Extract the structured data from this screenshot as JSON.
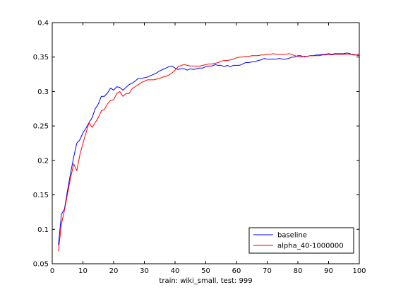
{
  "chart_data": {
    "type": "line",
    "title": "",
    "xlabel": "train: wiki_small, test: 999",
    "ylabel": "",
    "xlim": [
      0,
      100
    ],
    "ylim": [
      0.05,
      0.4
    ],
    "xticks": [
      "0",
      "10",
      "20",
      "30",
      "40",
      "50",
      "60",
      "70",
      "80",
      "90",
      "100"
    ],
    "yticks": [
      "0.05",
      "0.1",
      "0.15",
      "0.2",
      "0.25",
      "0.3",
      "0.35",
      "0.4"
    ],
    "grid": false,
    "legend_position": "bottom-right",
    "series": [
      {
        "name": "baseline",
        "color": "#0000ff",
        "x": [
          2,
          3,
          4,
          5,
          6,
          7,
          8,
          9,
          10,
          11,
          12,
          13,
          14,
          15,
          16,
          17,
          18,
          19,
          20,
          21,
          22,
          23,
          24,
          25,
          26,
          27,
          28,
          29,
          30,
          31,
          32,
          33,
          34,
          35,
          36,
          37,
          38,
          39,
          40,
          41,
          42,
          43,
          44,
          45,
          46,
          47,
          48,
          49,
          50,
          51,
          52,
          53,
          54,
          55,
          56,
          57,
          58,
          59,
          60,
          61,
          62,
          63,
          64,
          65,
          66,
          67,
          68,
          69,
          70,
          71,
          72,
          73,
          74,
          75,
          76,
          77,
          78,
          79,
          80,
          81,
          82,
          83,
          84,
          85,
          86,
          87,
          88,
          89,
          90,
          91,
          92,
          93,
          94,
          95,
          96,
          97,
          98,
          99,
          100
        ],
        "values": [
          0.077,
          0.122,
          0.13,
          0.157,
          0.182,
          0.205,
          0.225,
          0.23,
          0.24,
          0.247,
          0.255,
          0.262,
          0.275,
          0.282,
          0.293,
          0.293,
          0.298,
          0.305,
          0.302,
          0.307,
          0.306,
          0.302,
          0.306,
          0.31,
          0.312,
          0.315,
          0.319,
          0.319,
          0.32,
          0.321,
          0.323,
          0.325,
          0.327,
          0.33,
          0.332,
          0.334,
          0.336,
          0.337,
          0.334,
          0.332,
          0.333,
          0.333,
          0.331,
          0.333,
          0.332,
          0.333,
          0.334,
          0.334,
          0.336,
          0.337,
          0.337,
          0.339,
          0.338,
          0.338,
          0.336,
          0.338,
          0.336,
          0.338,
          0.338,
          0.338,
          0.34,
          0.342,
          0.342,
          0.343,
          0.343,
          0.345,
          0.346,
          0.348,
          0.347,
          0.347,
          0.347,
          0.347,
          0.348,
          0.347,
          0.347,
          0.348,
          0.35,
          0.35,
          0.352,
          0.352,
          0.35,
          0.351,
          0.352,
          0.352,
          0.353,
          0.353,
          0.354,
          0.354,
          0.355,
          0.354,
          0.355,
          0.355,
          0.355,
          0.355,
          0.356,
          0.355,
          0.353,
          0.353,
          0.352
        ]
      },
      {
        "name": "alpha_40-1000000",
        "color": "#ff0000",
        "x": [
          2,
          3,
          4,
          5,
          6,
          7,
          8,
          9,
          10,
          11,
          12,
          13,
          14,
          15,
          16,
          17,
          18,
          19,
          20,
          21,
          22,
          23,
          24,
          25,
          26,
          27,
          28,
          29,
          30,
          31,
          32,
          33,
          34,
          35,
          36,
          37,
          38,
          39,
          40,
          41,
          42,
          43,
          44,
          45,
          46,
          47,
          48,
          49,
          50,
          51,
          52,
          53,
          54,
          55,
          56,
          57,
          58,
          59,
          60,
          61,
          62,
          63,
          64,
          65,
          66,
          67,
          68,
          69,
          70,
          71,
          72,
          73,
          74,
          75,
          76,
          77,
          78,
          79,
          80,
          81,
          82,
          83,
          84,
          85,
          86,
          87,
          88,
          89,
          90,
          91,
          92,
          93,
          94,
          95,
          96,
          97,
          98,
          99,
          100
        ],
        "values": [
          0.068,
          0.108,
          0.128,
          0.152,
          0.175,
          0.195,
          0.185,
          0.208,
          0.225,
          0.24,
          0.255,
          0.248,
          0.255,
          0.262,
          0.272,
          0.274,
          0.282,
          0.287,
          0.288,
          0.297,
          0.3,
          0.293,
          0.297,
          0.297,
          0.304,
          0.307,
          0.31,
          0.313,
          0.315,
          0.317,
          0.317,
          0.317,
          0.318,
          0.319,
          0.321,
          0.322,
          0.324,
          0.327,
          0.331,
          0.336,
          0.338,
          0.339,
          0.338,
          0.337,
          0.337,
          0.337,
          0.337,
          0.338,
          0.339,
          0.34,
          0.34,
          0.341,
          0.342,
          0.344,
          0.345,
          0.345,
          0.346,
          0.347,
          0.349,
          0.35,
          0.35,
          0.351,
          0.351,
          0.352,
          0.352,
          0.352,
          0.353,
          0.353,
          0.354,
          0.354,
          0.355,
          0.354,
          0.354,
          0.354,
          0.354,
          0.355,
          0.354,
          0.352,
          0.351,
          0.35,
          0.351,
          0.351,
          0.352,
          0.352,
          0.352,
          0.352,
          0.353,
          0.353,
          0.354,
          0.353,
          0.354,
          0.354,
          0.354,
          0.354,
          0.354,
          0.354,
          0.354,
          0.353,
          0.355
        ]
      }
    ]
  }
}
